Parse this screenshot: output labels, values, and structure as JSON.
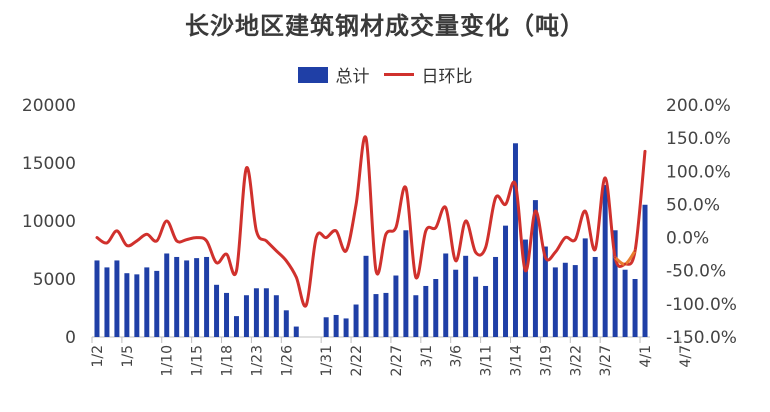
{
  "chart_data": {
    "type": "bar+line",
    "title": "长沙地区建筑钢材成交量变化（吨）",
    "legend": [
      "总计",
      "日环比"
    ],
    "legend_position": "top",
    "colors": {
      "bar": "#1f3fa6",
      "line": "#d0312d",
      "line_tail": "#e87d2f"
    },
    "grid": false,
    "y_left": {
      "ticks": [
        "0",
        "5000",
        "10000",
        "15000",
        "20000"
      ],
      "range": [
        0,
        20000
      ]
    },
    "y_right": {
      "ticks": [
        "-150.0%",
        "-100.0%",
        "-50.0%",
        "0.0%",
        "50.0%",
        "100.0%",
        "150.0%",
        "200.0%"
      ],
      "range": [
        -150,
        200
      ]
    },
    "x_tick_labels": [
      "1/2",
      "1/5",
      "1/10",
      "1/15",
      "1/18",
      "1/23",
      "1/26",
      "1/31",
      "2/22",
      "2/27",
      "3/1",
      "3/6",
      "3/11",
      "3/14",
      "3/19",
      "3/22",
      "3/27",
      "4/1",
      "4/7"
    ],
    "x_tick_index": [
      0,
      3,
      7,
      10,
      13,
      16,
      19,
      23,
      26,
      30,
      33,
      36,
      39,
      42,
      45,
      48,
      51,
      55,
      59
    ],
    "series": [
      {
        "name": "总计",
        "type": "bar",
        "values": [
          6600,
          6000,
          6600,
          5500,
          5400,
          6000,
          5700,
          7200,
          6900,
          6600,
          6800,
          6900,
          4500,
          3800,
          1800,
          3600,
          4200,
          4200,
          3600,
          2300,
          900,
          null,
          null,
          1700,
          1900,
          1600,
          2800,
          7000,
          3700,
          3800,
          5300,
          9200,
          3600,
          4400,
          5000,
          7200,
          5800,
          7000,
          5200,
          4400,
          6900,
          9600,
          16700,
          8400,
          11800,
          7800,
          6000,
          6400,
          6200,
          8500,
          6900,
          13100,
          9200,
          5800,
          5000,
          11400
        ]
      },
      {
        "name": "日环比",
        "type": "line",
        "values": [
          0,
          -8,
          10,
          -12,
          -5,
          5,
          -5,
          25,
          -5,
          -3,
          0,
          -5,
          -38,
          -25,
          -50,
          105,
          10,
          -5,
          -20,
          -35,
          -60,
          -102,
          0,
          0,
          10,
          -20,
          50,
          150,
          -50,
          5,
          15,
          75,
          -60,
          10,
          15,
          45,
          -35,
          25,
          -22,
          -15,
          60,
          50,
          80,
          -50,
          40,
          -30,
          -22,
          0,
          -3,
          40,
          -18,
          90,
          -30,
          -40,
          -20,
          130
        ]
      }
    ]
  }
}
